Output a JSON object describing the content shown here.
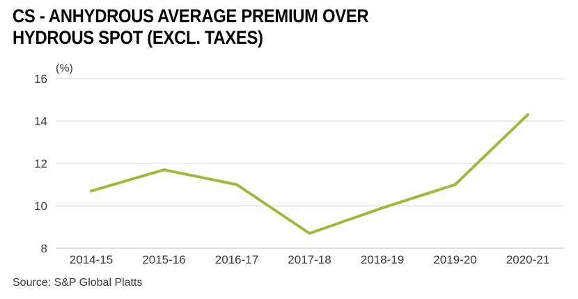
{
  "title_lines": [
    "CS - ANHYDROUS AVERAGE PREMIUM OVER",
    "HYDROUS SPOT (EXCL. TAXES)"
  ],
  "source": "Source: S&P Global Platts",
  "colors": {
    "line": "#9cbb3a",
    "grid": "#d9d9d9",
    "text": "#3a3a3a"
  },
  "chart_data": {
    "type": "line",
    "title": "CS - ANHYDROUS AVERAGE PREMIUM OVER HYDROUS SPOT (EXCL. TAXES)",
    "ylabel": "(%)",
    "xlabel": "",
    "categories": [
      "2014-15",
      "2015-16",
      "2016-17",
      "2017-18",
      "2018-19",
      "2019-20",
      "2020-21"
    ],
    "series": [
      {
        "values": [
          10.7,
          11.7,
          11.0,
          8.7,
          9.9,
          11.0,
          14.3
        ]
      }
    ],
    "ylim": [
      8,
      16
    ],
    "yticks": [
      8,
      10,
      12,
      14,
      16
    ],
    "grid": true,
    "legend": "none"
  }
}
